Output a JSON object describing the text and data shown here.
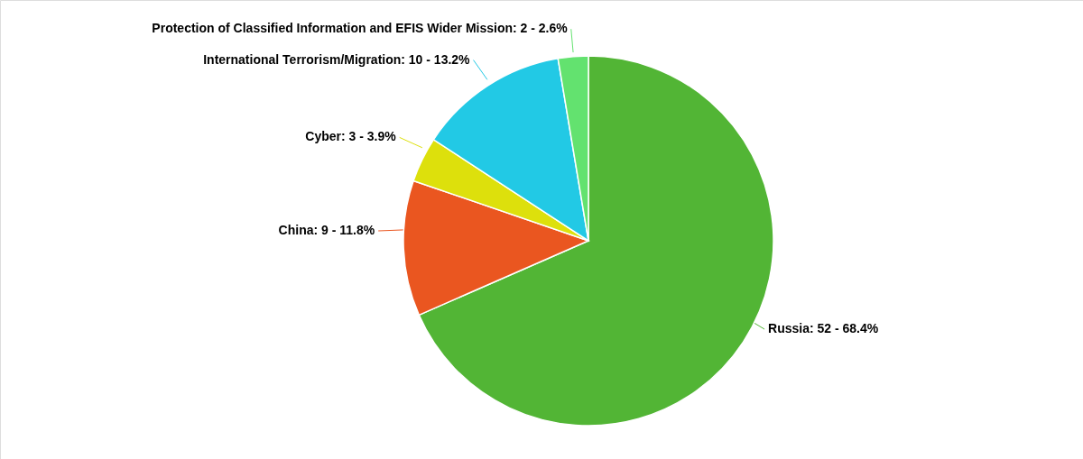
{
  "chart_data": {
    "type": "pie",
    "categories": [
      "Russia",
      "China",
      "Cyber",
      "International Terrorism/Migration",
      "Protection of Classified Information and EFIS Wider Mission"
    ],
    "values": [
      52,
      9,
      3,
      10,
      2
    ],
    "colors": [
      "#52b535",
      "#ea5620",
      "#dde00c",
      "#22c9e5",
      "#63e26f"
    ],
    "value_labels": [
      "52 - 68.4%",
      "9 - 11.8%",
      "3 - 3.9%",
      "10 - 13.2%",
      "2 - 2.6%"
    ]
  }
}
